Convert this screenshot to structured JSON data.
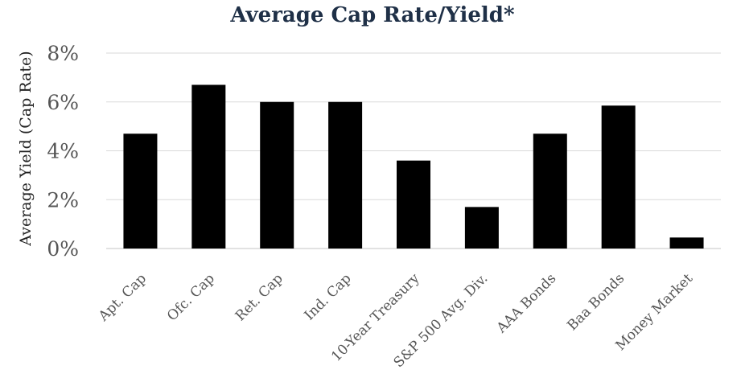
{
  "chart_data": {
    "type": "bar",
    "title": "Average Cap Rate/Yield*",
    "xlabel": "",
    "ylabel": "Average Yield (Cap Rate)",
    "categories": [
      "Apt. Cap",
      "Ofc. Cap",
      "Ret. Cap",
      "Ind. Cap",
      "10-Year Treasury",
      "S&P 500 Avg. Div.",
      "AAA Bonds",
      "Baa Bonds",
      "Money Market"
    ],
    "values": [
      4.7,
      6.7,
      6.0,
      6.0,
      3.6,
      1.7,
      4.7,
      5.85,
      0.45
    ],
    "ylim": [
      0,
      8
    ],
    "yticks": [
      0,
      2,
      4,
      6,
      8
    ],
    "ytick_labels": [
      "0%",
      "2%",
      "4%",
      "6%",
      "8%"
    ],
    "grid": true,
    "legend": "none",
    "colors": {
      "bar": "#000000",
      "grid": "#d9d9d9",
      "title": "#1f3047"
    }
  }
}
